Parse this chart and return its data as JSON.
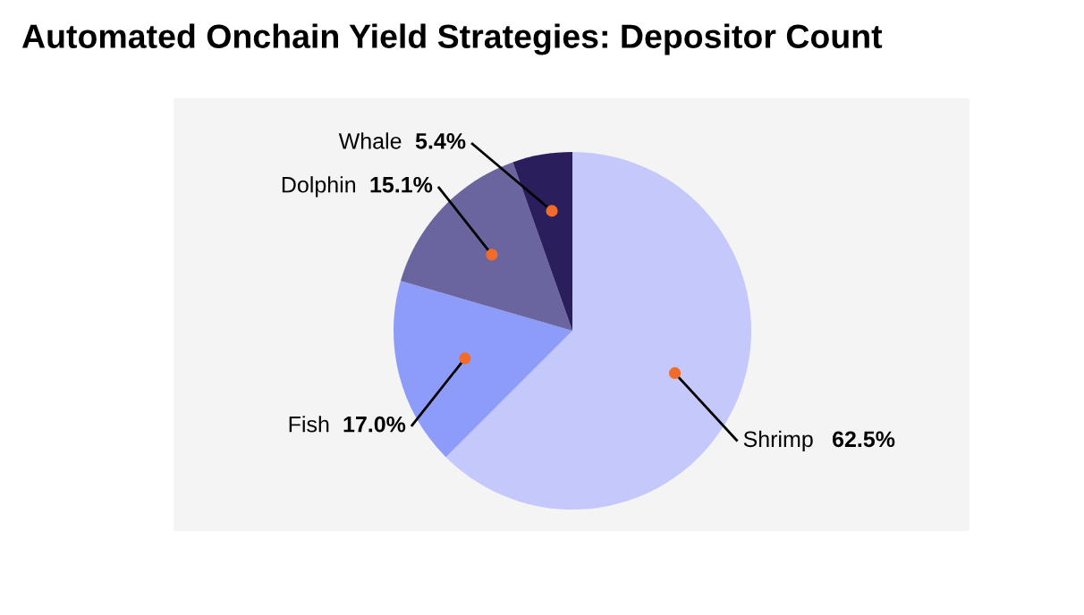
{
  "chart_data": {
    "type": "pie",
    "title": "Automated Onchain Yield Strategies: Depositor Count",
    "categories": [
      "Shrimp",
      "Fish",
      "Dolphin",
      "Whale"
    ],
    "values": [
      62.5,
      17.0,
      15.1,
      5.4
    ],
    "value_labels": [
      "62.5%",
      "17.0%",
      "15.1%",
      "5.4%"
    ],
    "colors": [
      "#c5c8fb",
      "#8c9cf8",
      "#6b659f",
      "#2a1f5c"
    ]
  }
}
